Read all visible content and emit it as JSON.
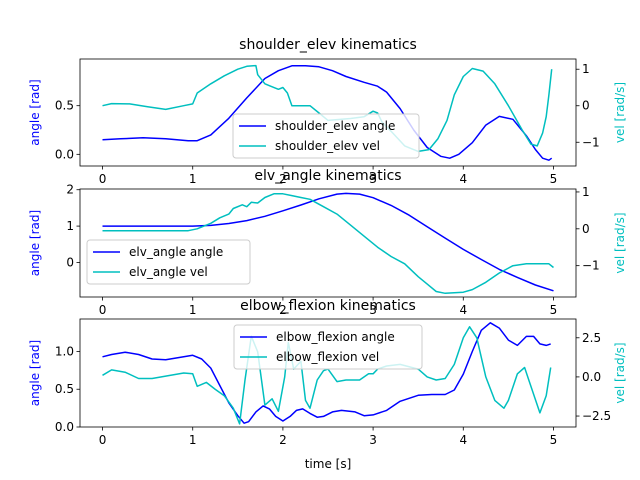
{
  "chart_data": [
    {
      "type": "line",
      "title": "shoulder_elev kinematics",
      "xlabel": "",
      "ylabel_left": "angle [rad]",
      "ylabel_right": "vel [rad/s]",
      "xlim": [
        -0.25,
        5.25
      ],
      "ylim_left": [
        -0.12,
        0.98
      ],
      "ylim_right": [
        -1.65,
        1.28
      ],
      "xticks": [
        0,
        1,
        2,
        3,
        4,
        5
      ],
      "yticks_left": [
        0.0,
        0.5
      ],
      "yticks_right": [
        -1,
        0,
        1
      ],
      "legend_position": "lower-center",
      "colors": {
        "angle": "#0000ff",
        "vel": "#00bfbf"
      },
      "series": [
        {
          "name": "shoulder_elev angle",
          "axis": "left",
          "color": "#0000ff",
          "points": [
            [
              0,
              0.15
            ],
            [
              0.2,
              0.16
            ],
            [
              0.45,
              0.17
            ],
            [
              0.7,
              0.16
            ],
            [
              0.95,
              0.14
            ],
            [
              1.05,
              0.14
            ],
            [
              1.2,
              0.2
            ],
            [
              1.4,
              0.37
            ],
            [
              1.6,
              0.58
            ],
            [
              1.8,
              0.78
            ],
            [
              1.95,
              0.86
            ],
            [
              2.1,
              0.91
            ],
            [
              2.25,
              0.91
            ],
            [
              2.4,
              0.9
            ],
            [
              2.55,
              0.86
            ],
            [
              2.7,
              0.8
            ],
            [
              2.9,
              0.74
            ],
            [
              3.05,
              0.7
            ],
            [
              3.15,
              0.64
            ],
            [
              3.3,
              0.47
            ],
            [
              3.45,
              0.25
            ],
            [
              3.6,
              0.07
            ],
            [
              3.75,
              -0.02
            ],
            [
              3.85,
              -0.04
            ],
            [
              3.95,
              0.0
            ],
            [
              4.1,
              0.12
            ],
            [
              4.25,
              0.3
            ],
            [
              4.4,
              0.39
            ],
            [
              4.55,
              0.36
            ],
            [
              4.7,
              0.19
            ],
            [
              4.8,
              0.05
            ],
            [
              4.88,
              -0.04
            ],
            [
              4.95,
              -0.06
            ],
            [
              4.98,
              -0.04
            ]
          ]
        },
        {
          "name": "shoulder_elev vel",
          "axis": "right",
          "color": "#00bfbf",
          "points": [
            [
              0,
              0.0
            ],
            [
              0.1,
              0.06
            ],
            [
              0.3,
              0.05
            ],
            [
              0.5,
              -0.03
            ],
            [
              0.7,
              -0.1
            ],
            [
              0.9,
              0.0
            ],
            [
              1.0,
              0.05
            ],
            [
              1.05,
              0.35
            ],
            [
              1.2,
              0.6
            ],
            [
              1.35,
              0.82
            ],
            [
              1.5,
              1.0
            ],
            [
              1.6,
              1.08
            ],
            [
              1.7,
              1.1
            ],
            [
              1.72,
              0.85
            ],
            [
              1.8,
              0.6
            ],
            [
              1.85,
              0.55
            ],
            [
              1.95,
              0.45
            ],
            [
              2.0,
              0.5
            ],
            [
              2.05,
              0.35
            ],
            [
              2.1,
              0.0
            ],
            [
              2.2,
              0.0
            ],
            [
              2.3,
              0.0
            ],
            [
              2.4,
              -0.2
            ],
            [
              2.5,
              -0.4
            ],
            [
              2.6,
              -0.38
            ],
            [
              2.75,
              -0.35
            ],
            [
              2.9,
              -0.3
            ],
            [
              3.0,
              -0.15
            ],
            [
              3.05,
              -0.2
            ],
            [
              3.1,
              -0.45
            ],
            [
              3.2,
              -0.7
            ],
            [
              3.35,
              -1.1
            ],
            [
              3.5,
              -1.25
            ],
            [
              3.62,
              -1.2
            ],
            [
              3.72,
              -0.9
            ],
            [
              3.82,
              -0.4
            ],
            [
              3.9,
              0.3
            ],
            [
              4.0,
              0.8
            ],
            [
              4.1,
              1.02
            ],
            [
              4.22,
              0.95
            ],
            [
              4.35,
              0.6
            ],
            [
              4.5,
              0.0
            ],
            [
              4.65,
              -0.65
            ],
            [
              4.75,
              -1.05
            ],
            [
              4.82,
              -1.1
            ],
            [
              4.88,
              -0.75
            ],
            [
              4.92,
              -0.3
            ],
            [
              4.95,
              0.3
            ],
            [
              4.98,
              1.0
            ]
          ]
        }
      ]
    },
    {
      "type": "line",
      "title": "elv_angle kinematics",
      "xlabel": "",
      "ylabel_left": "angle [rad]",
      "ylabel_right": "vel [rad/s]",
      "xlim": [
        -0.25,
        5.25
      ],
      "ylim_left": [
        -0.95,
        2.02
      ],
      "ylim_right": [
        -1.85,
        1.08
      ],
      "xticks": [
        0,
        1,
        2,
        3,
        4,
        5
      ],
      "yticks_left": [
        0,
        1,
        2
      ],
      "yticks_right": [
        -1,
        0,
        1
      ],
      "legend_position": "lower-left",
      "colors": {
        "angle": "#0000ff",
        "vel": "#00bfbf"
      },
      "series": [
        {
          "name": "elv_angle angle",
          "axis": "left",
          "color": "#0000ff",
          "points": [
            [
              0,
              1.0
            ],
            [
              0.5,
              1.0
            ],
            [
              1.0,
              1.0
            ],
            [
              1.2,
              1.02
            ],
            [
              1.4,
              1.07
            ],
            [
              1.6,
              1.15
            ],
            [
              1.8,
              1.27
            ],
            [
              2.0,
              1.42
            ],
            [
              2.2,
              1.58
            ],
            [
              2.4,
              1.75
            ],
            [
              2.6,
              1.88
            ],
            [
              2.7,
              1.9
            ],
            [
              2.85,
              1.88
            ],
            [
              3.0,
              1.78
            ],
            [
              3.2,
              1.57
            ],
            [
              3.4,
              1.3
            ],
            [
              3.6,
              0.98
            ],
            [
              3.8,
              0.67
            ],
            [
              4.0,
              0.36
            ],
            [
              4.2,
              0.08
            ],
            [
              4.4,
              -0.19
            ],
            [
              4.6,
              -0.41
            ],
            [
              4.8,
              -0.62
            ],
            [
              5.0,
              -0.78
            ]
          ]
        },
        {
          "name": "elv_angle vel",
          "axis": "right",
          "color": "#00bfbf",
          "points": [
            [
              0,
              -0.05
            ],
            [
              0.5,
              -0.05
            ],
            [
              0.95,
              -0.05
            ],
            [
              1.05,
              0.0
            ],
            [
              1.2,
              0.15
            ],
            [
              1.3,
              0.3
            ],
            [
              1.4,
              0.4
            ],
            [
              1.45,
              0.55
            ],
            [
              1.55,
              0.65
            ],
            [
              1.6,
              0.6
            ],
            [
              1.65,
              0.72
            ],
            [
              1.72,
              0.7
            ],
            [
              1.8,
              0.85
            ],
            [
              1.9,
              0.95
            ],
            [
              2.0,
              0.95
            ],
            [
              2.1,
              0.9
            ],
            [
              2.2,
              0.85
            ],
            [
              2.3,
              0.8
            ],
            [
              2.45,
              0.6
            ],
            [
              2.6,
              0.4
            ],
            [
              2.75,
              0.1
            ],
            [
              2.9,
              -0.2
            ],
            [
              3.05,
              -0.5
            ],
            [
              3.2,
              -0.75
            ],
            [
              3.35,
              -0.95
            ],
            [
              3.5,
              -1.3
            ],
            [
              3.6,
              -1.5
            ],
            [
              3.7,
              -1.7
            ],
            [
              3.8,
              -1.75
            ],
            [
              4.0,
              -1.72
            ],
            [
              4.1,
              -1.65
            ],
            [
              4.25,
              -1.45
            ],
            [
              4.4,
              -1.2
            ],
            [
              4.55,
              -1.0
            ],
            [
              4.7,
              -0.95
            ],
            [
              4.85,
              -0.95
            ],
            [
              4.95,
              -0.95
            ],
            [
              5.0,
              -1.05
            ]
          ]
        }
      ]
    },
    {
      "type": "line",
      "title": "elbow_flexion kinematics",
      "xlabel": "time [s]",
      "ylabel_left": "angle [rad]",
      "ylabel_right": "vel [rad/s]",
      "xlim": [
        -0.25,
        5.25
      ],
      "ylim_left": [
        0.0,
        1.43
      ],
      "ylim_right": [
        -3.2,
        3.7
      ],
      "xticks": [
        0,
        1,
        2,
        3,
        4,
        5
      ],
      "yticks_left": [
        0.0,
        0.5,
        1.0
      ],
      "yticks_right": [
        -2.5,
        0.0,
        2.5
      ],
      "legend_position": "upper-center",
      "colors": {
        "angle": "#0000ff",
        "vel": "#00bfbf"
      },
      "series": [
        {
          "name": "elbow_flexion angle",
          "axis": "left",
          "color": "#0000ff",
          "points": [
            [
              0,
              0.93
            ],
            [
              0.1,
              0.96
            ],
            [
              0.25,
              0.99
            ],
            [
              0.4,
              0.96
            ],
            [
              0.55,
              0.9
            ],
            [
              0.7,
              0.89
            ],
            [
              0.85,
              0.92
            ],
            [
              1.0,
              0.95
            ],
            [
              1.1,
              0.9
            ],
            [
              1.2,
              0.78
            ],
            [
              1.3,
              0.55
            ],
            [
              1.4,
              0.32
            ],
            [
              1.5,
              0.15
            ],
            [
              1.57,
              0.05
            ],
            [
              1.62,
              0.07
            ],
            [
              1.7,
              0.2
            ],
            [
              1.78,
              0.28
            ],
            [
              1.85,
              0.24
            ],
            [
              1.92,
              0.14
            ],
            [
              2.0,
              0.08
            ],
            [
              2.08,
              0.14
            ],
            [
              2.15,
              0.22
            ],
            [
              2.22,
              0.24
            ],
            [
              2.3,
              0.18
            ],
            [
              2.38,
              0.13
            ],
            [
              2.45,
              0.14
            ],
            [
              2.55,
              0.2
            ],
            [
              2.65,
              0.22
            ],
            [
              2.8,
              0.2
            ],
            [
              2.9,
              0.15
            ],
            [
              3.0,
              0.16
            ],
            [
              3.15,
              0.22
            ],
            [
              3.3,
              0.34
            ],
            [
              3.5,
              0.42
            ],
            [
              3.65,
              0.43
            ],
            [
              3.8,
              0.43
            ],
            [
              3.9,
              0.49
            ],
            [
              4.0,
              0.7
            ],
            [
              4.1,
              1.0
            ],
            [
              4.2,
              1.28
            ],
            [
              4.3,
              1.38
            ],
            [
              4.4,
              1.31
            ],
            [
              4.5,
              1.15
            ],
            [
              4.6,
              1.08
            ],
            [
              4.7,
              1.2
            ],
            [
              4.78,
              1.2
            ],
            [
              4.85,
              1.1
            ],
            [
              4.92,
              1.08
            ],
            [
              4.97,
              1.1
            ]
          ]
        },
        {
          "name": "elbow_flexion vel",
          "axis": "right",
          "color": "#00bfbf",
          "points": [
            [
              0,
              0.1
            ],
            [
              0.1,
              0.45
            ],
            [
              0.25,
              0.3
            ],
            [
              0.4,
              -0.1
            ],
            [
              0.55,
              -0.1
            ],
            [
              0.7,
              0.05
            ],
            [
              0.9,
              0.25
            ],
            [
              1.0,
              0.2
            ],
            [
              1.05,
              -0.6
            ],
            [
              1.15,
              -0.35
            ],
            [
              1.25,
              -0.8
            ],
            [
              1.35,
              -1.2
            ],
            [
              1.45,
              -2.0
            ],
            [
              1.52,
              -3.0
            ],
            [
              1.58,
              -0.2
            ],
            [
              1.65,
              2.6
            ],
            [
              1.72,
              1.6
            ],
            [
              1.8,
              -1.8
            ],
            [
              1.88,
              -1.4
            ],
            [
              1.95,
              -2.2
            ],
            [
              2.02,
              0.0
            ],
            [
              2.06,
              2.2
            ],
            [
              2.12,
              0.5
            ],
            [
              2.2,
              1.0
            ],
            [
              2.25,
              -1.5
            ],
            [
              2.3,
              -2.0
            ],
            [
              2.38,
              -0.2
            ],
            [
              2.45,
              0.4
            ],
            [
              2.5,
              0.5
            ],
            [
              2.6,
              -0.3
            ],
            [
              2.7,
              -0.2
            ],
            [
              2.85,
              -0.2
            ],
            [
              2.95,
              0.2
            ],
            [
              3.0,
              0.2
            ],
            [
              3.05,
              0.5
            ],
            [
              3.15,
              0.7
            ],
            [
              3.3,
              0.8
            ],
            [
              3.5,
              0.5
            ],
            [
              3.6,
              0.0
            ],
            [
              3.7,
              -0.2
            ],
            [
              3.8,
              -0.1
            ],
            [
              3.9,
              0.8
            ],
            [
              4.0,
              2.5
            ],
            [
              4.07,
              3.2
            ],
            [
              4.15,
              2.5
            ],
            [
              4.25,
              0.0
            ],
            [
              4.35,
              -1.5
            ],
            [
              4.45,
              -2.0
            ],
            [
              4.5,
              -1.5
            ],
            [
              4.6,
              0.2
            ],
            [
              4.68,
              0.6
            ],
            [
              4.75,
              -0.6
            ],
            [
              4.85,
              -2.3
            ],
            [
              4.92,
              -1.2
            ],
            [
              4.97,
              0.6
            ]
          ]
        }
      ]
    }
  ]
}
